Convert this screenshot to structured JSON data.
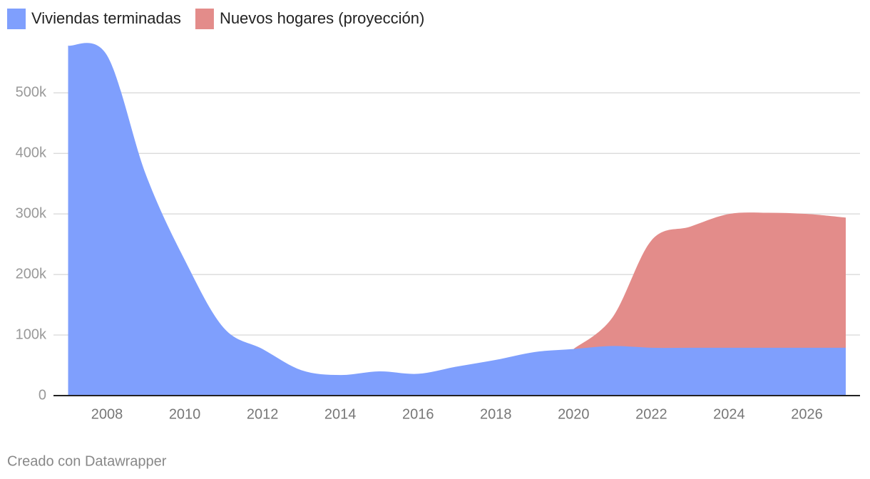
{
  "chart_data": {
    "type": "area",
    "x": [
      2007,
      2008,
      2009,
      2010,
      2011,
      2012,
      2013,
      2014,
      2015,
      2016,
      2017,
      2018,
      2019,
      2020,
      2021,
      2022,
      2023,
      2024,
      2025,
      2026,
      2027
    ],
    "series": [
      {
        "name": "Viviendas terminadas",
        "color": "#7f9ffd",
        "values": [
          578000,
          562000,
          365000,
          224000,
          112000,
          77000,
          42000,
          34000,
          40000,
          36000,
          48000,
          59000,
          72000,
          77000,
          82000,
          79000,
          79000,
          79000,
          79000,
          79000,
          79000
        ]
      },
      {
        "name": "Nuevos hogares (proyección)",
        "color": "#e38c8a",
        "values": [
          null,
          null,
          null,
          null,
          null,
          null,
          null,
          null,
          null,
          null,
          null,
          null,
          null,
          77000,
          129000,
          256000,
          279000,
          300000,
          302000,
          300000,
          294000
        ]
      }
    ],
    "xlim": [
      2007,
      2027
    ],
    "xticks": [
      2008,
      2010,
      2012,
      2014,
      2016,
      2018,
      2020,
      2022,
      2024,
      2026
    ],
    "ylim": [
      0,
      578000
    ],
    "yticks": [
      0,
      {
        "value": 100000,
        "label": "100k"
      },
      {
        "value": 200000,
        "label": "200k"
      },
      {
        "value": 300000,
        "label": "300k"
      },
      {
        "value": 400000,
        "label": "400k"
      },
      {
        "value": 500000,
        "label": "500k"
      }
    ],
    "grid": true,
    "legend": "top-left",
    "footer": "Creado con Datawrapper"
  }
}
